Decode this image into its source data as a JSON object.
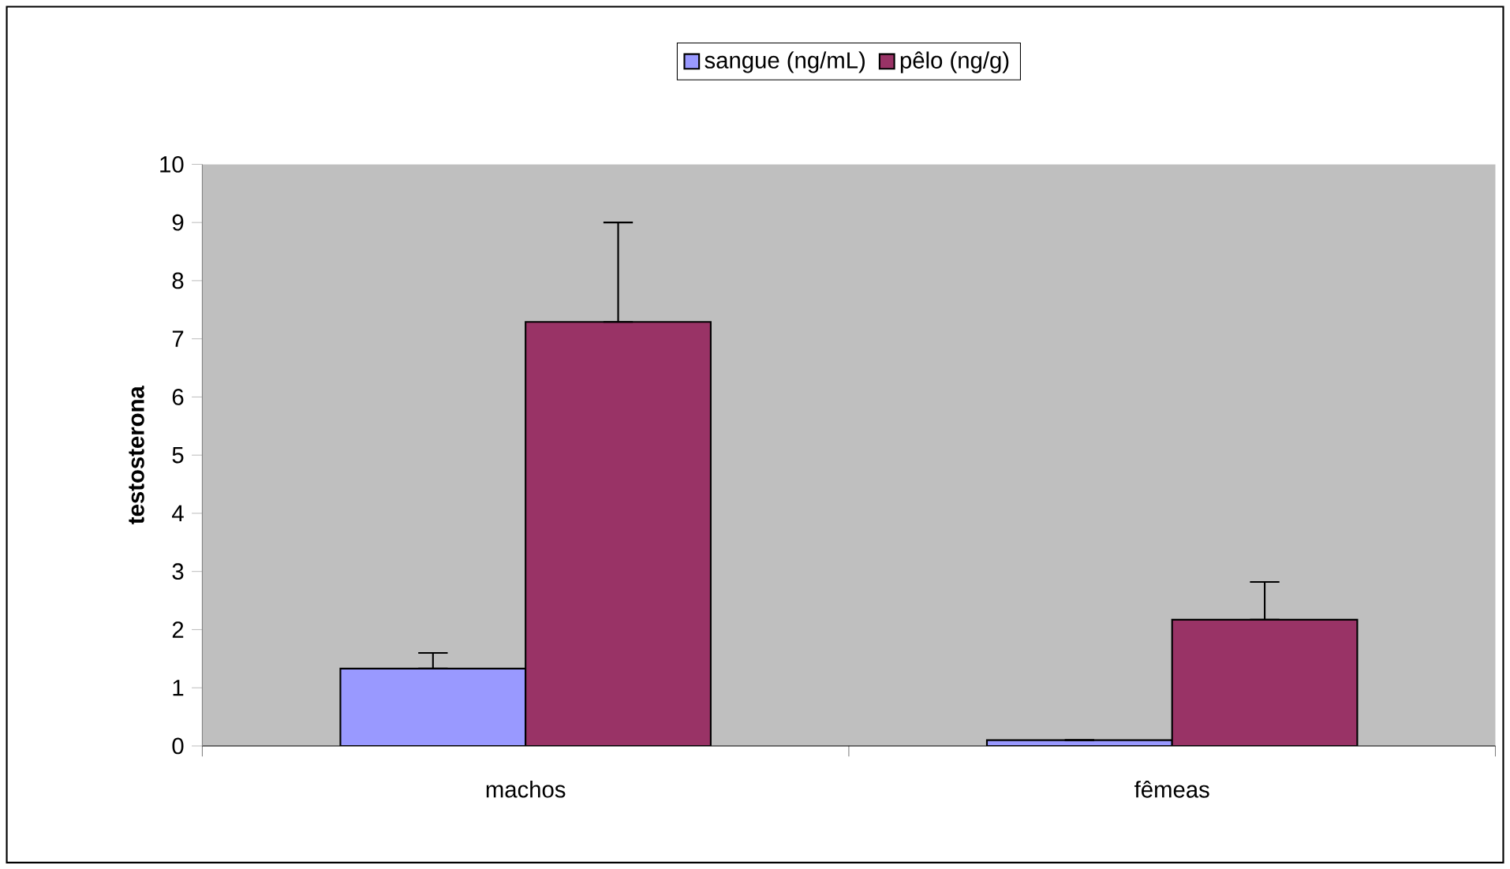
{
  "chart_data": {
    "type": "bar",
    "ylabel": "testosterona",
    "categories": [
      "machos",
      "fêmeas"
    ],
    "series": [
      {
        "name": "sangue (ng/mL)",
        "color": "#9999ff",
        "values": [
          1.33,
          0.1
        ],
        "errors": [
          [
            1.33,
            1.6
          ],
          null
        ]
      },
      {
        "name": "pêlo (ng/g)",
        "color": "#993366",
        "values": [
          7.29,
          2.17
        ],
        "errors": [
          [
            7.29,
            9.0
          ],
          [
            2.17,
            2.82
          ]
        ]
      }
    ],
    "ylim": [
      0,
      10
    ],
    "yticks": [
      0,
      1,
      2,
      3,
      4,
      5,
      6,
      7,
      8,
      9,
      10
    ],
    "legend": "top",
    "grid": false
  }
}
